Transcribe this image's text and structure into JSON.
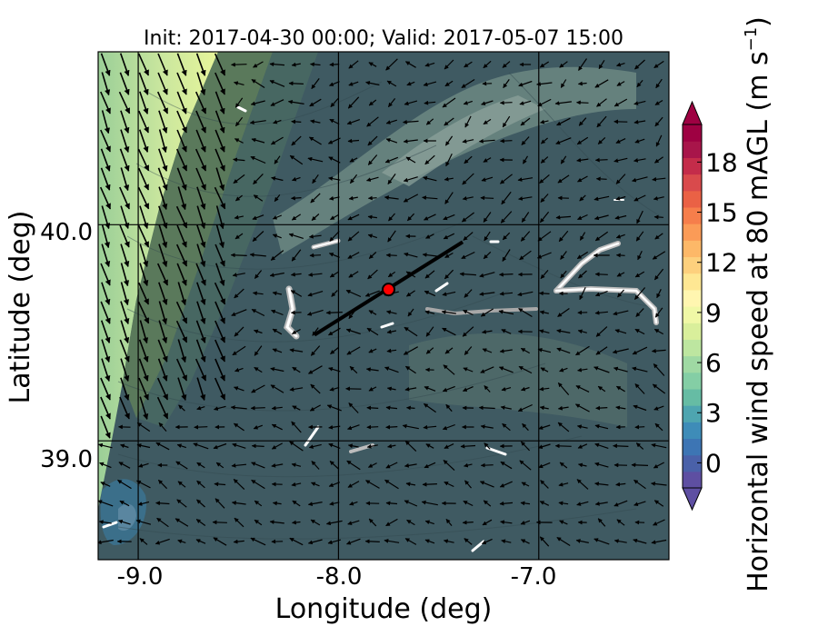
{
  "title": "Init: 2017-04-30 00:00; Valid: 2017-05-07 15:00",
  "x_axis": {
    "label": "Longitude (deg)",
    "ticks": [
      "-9.0",
      "-8.0",
      "-7.0"
    ]
  },
  "y_axis": {
    "label": "Latitude (deg)",
    "ticks": [
      "40.0",
      "39.0"
    ]
  },
  "colorbar": {
    "label": "Horizontal wind speed at 80 mAGL (m s",
    "label_sup": "−1",
    "label_close": ")",
    "ticks": [
      "0",
      "3",
      "6",
      "9",
      "12",
      "15",
      "18"
    ],
    "min": -1.5,
    "max": 20.25,
    "extend": "both",
    "levels": [
      -1.5,
      -0.75,
      0,
      0.75,
      1.5,
      2.25,
      3,
      3.75,
      4.5,
      5.25,
      6,
      6.75,
      7.5,
      8.25,
      9,
      9.75,
      10.5,
      11.25,
      12,
      12.75,
      13.5,
      14.25,
      15,
      15.75,
      16.5,
      17.25,
      18,
      18.75,
      19.5,
      20.25
    ],
    "colors": [
      "#5e4fa2",
      "#4a61a9",
      "#3d75b4",
      "#3e8cb8",
      "#4ea5b0",
      "#66bca4",
      "#84ceA5",
      "#9fd9a3",
      "#bde6a0",
      "#d9ef9b",
      "#f0f8a6",
      "#fff6b0",
      "#fee793",
      "#fdd07d",
      "#fdb868",
      "#fb9b57",
      "#f67e4b",
      "#ea6145",
      "#d94a4c",
      "#c42c4a",
      "#a8154a",
      "#9e0142"
    ]
  },
  "marker": {
    "lon": -7.75,
    "lat": 39.7,
    "color": "#ff0000"
  },
  "transect": {
    "lon": [
      -8.12,
      -7.38
    ],
    "lat": [
      39.49,
      39.92
    ]
  },
  "extent": {
    "lon": [
      -9.2,
      -6.35
    ],
    "lat": [
      38.45,
      40.8
    ]
  },
  "gridlines": {
    "lon": [
      -9.0,
      -8.0,
      -7.0
    ],
    "lat": [
      39.0,
      40.0
    ]
  }
}
